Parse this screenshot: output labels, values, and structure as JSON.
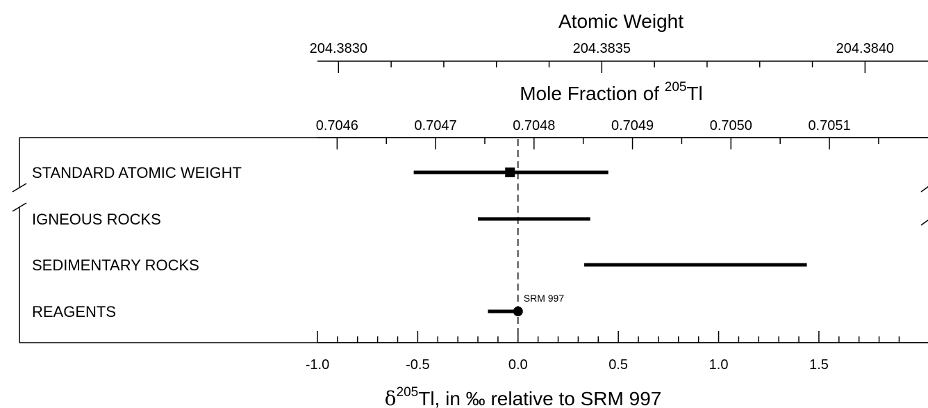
{
  "chart_data": {
    "type": "range",
    "top_axis_1": {
      "title": "Atomic Weight",
      "range": [
        204.38296,
        204.38408
      ],
      "ticks": [
        "204.3830",
        "204.3835",
        "204.3840"
      ],
      "tick_values": [
        204.383,
        204.3835,
        204.384
      ],
      "minor_step": 0.0001
    },
    "top_axis_2": {
      "title_prefix": "Mole Fraction of ",
      "title_sup": "205",
      "title_suffix": "Tl",
      "range": [
        0.70458,
        0.705179
      ],
      "ticks": [
        "0.7046",
        "0.7047",
        "0.7048",
        "0.7049",
        "0.7050",
        "0.7051"
      ],
      "tick_values": [
        0.7046,
        0.7047,
        0.7048,
        0.7049,
        0.705,
        0.7051
      ],
      "minor_step": 5e-05
    },
    "x_axis": {
      "title_prefix": "δ",
      "title_sup": "205",
      "title_suffix": "Tl, in ‰ relative to SRM 997",
      "range": [
        -1.0,
        1.94
      ],
      "ticks": [
        "-1.0",
        "-0.5",
        "0.0",
        "0.5",
        "1.0",
        "1.5"
      ],
      "tick_values": [
        -1.0,
        -0.5,
        0.0,
        0.5,
        1.0,
        1.5
      ],
      "minor_step": 0.1
    },
    "reference_line": 0.0,
    "categories": [
      "STANDARD ATOMIC WEIGHT",
      "IGNEOUS ROCKS",
      "SEDIMENTARY ROCKS",
      "REAGENTS"
    ],
    "ranges": [
      {
        "category": "STANDARD ATOMIC WEIGHT",
        "min": -0.52,
        "max": 0.45,
        "marker": "square",
        "marker_value": -0.04
      },
      {
        "category": "IGNEOUS ROCKS",
        "min": -0.2,
        "max": 0.36
      },
      {
        "category": "SEDIMENTARY ROCKS",
        "min": 0.33,
        "max": 1.44
      },
      {
        "category": "REAGENTS",
        "min": -0.15,
        "max": 0.0,
        "marker": "circle",
        "marker_value": 0.0,
        "marker_label": "SRM 997"
      }
    ]
  }
}
